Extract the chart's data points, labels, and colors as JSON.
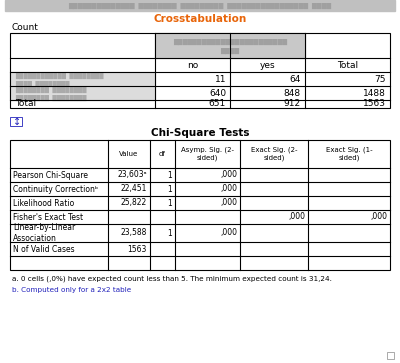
{
  "title_crosstab": "Crosstabulation",
  "count_label": "Count",
  "crosstab_subheaders": [
    "no",
    "yes",
    "Total"
  ],
  "crosstab_row1_values": [
    "11",
    "64",
    "75"
  ],
  "crosstab_row2_values": [
    "640",
    "848",
    "1488"
  ],
  "crosstab_total_values": [
    "651",
    "912",
    "1563"
  ],
  "chisq_title": "Chi-Square Tests",
  "chisq_rows": [
    [
      "Pearson Chi-Square",
      "23,603ᵃ",
      "1",
      ",000",
      "",
      ""
    ],
    [
      "Continuity Correctionᵇ",
      "22,451",
      "1",
      ",000",
      "",
      ""
    ],
    [
      "Likelihood Ratio",
      "25,822",
      "1",
      ",000",
      "",
      ""
    ],
    [
      "Fisher's Exact Test",
      "",
      "",
      "",
      ",000",
      ",000"
    ],
    [
      "Linear-by-Linear\nAssociation",
      "23,588",
      "1",
      ",000",
      "",
      ""
    ],
    [
      "N of Valid Cases",
      "1563",
      "",
      "",
      "",
      ""
    ]
  ],
  "footnote_a": "a. 0 cells (,0%) have expected count less than 5. The minimum expected count is 31,24.",
  "footnote_b": "b. Computed only for a 2x2 table",
  "orange_color": "#E8650A",
  "blue_color": "#2222BB",
  "black": "#000000",
  "gray_blurred": "#C8C8C8",
  "light_gray_row": "#DCDCDC",
  "bg_color": "#FFFFFF"
}
